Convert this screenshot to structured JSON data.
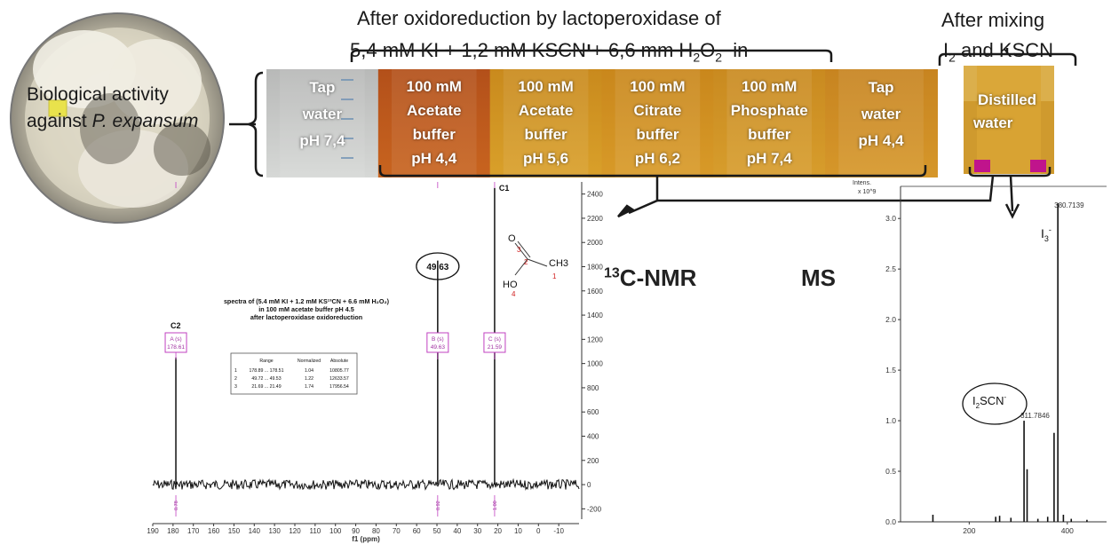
{
  "header": {
    "title_line1": "After oxidoreduction by lactoperoxidase of",
    "title_line2_part1": "5,4 mM KI + 1,2 mM KSCN + 6,6 mm H",
    "title_line2_sub1": "2",
    "title_line2_part2": "O",
    "title_line2_sub2": "2",
    "title_line2_part3": "  in",
    "mixing_line1": "After mixing",
    "mixing_line2_part1": "I",
    "mixing_line2_sub": "2",
    "mixing_line2_part2": " and KSCN"
  },
  "biological": {
    "line1": "Biological activity",
    "line2_plain": "against ",
    "line2_italic": "P. expansum"
  },
  "tubes": [
    {
      "label": [
        "Tap",
        "water",
        "pH 7,4"
      ],
      "color_top": "#b8b9b8",
      "color_bottom": "#d6d8d6"
    },
    {
      "label": [
        "100 mM",
        "Acetate",
        "buffer",
        "pH 4,4"
      ],
      "color_top": "#b3501a",
      "color_bottom": "#c8641f"
    },
    {
      "label": [
        "100 mM",
        "Acetate",
        "buffer",
        "pH 5,6"
      ],
      "color_top": "#c98a1d",
      "color_bottom": "#d9a02a"
    },
    {
      "label": [
        "100 mM",
        "Citrate",
        "buffer",
        "pH 6,2"
      ],
      "color_top": "#c9871c",
      "color_bottom": "#d89a28"
    },
    {
      "label": [
        "100 mM",
        "Phosphate",
        "buffer",
        "pH 7,4"
      ],
      "color_top": "#c98a20",
      "color_bottom": "#d79d2c"
    },
    {
      "label": [
        "Tap",
        "water",
        "pH 4,4"
      ],
      "color_top": "#c78420",
      "color_bottom": "#d6972a"
    }
  ],
  "distilled": {
    "label": [
      "Distilled",
      "water"
    ]
  },
  "nmr_label": {
    "sup": "13",
    "text": "C-NMR"
  },
  "ms_label": "MS",
  "chart_data": [
    {
      "type": "line",
      "title": "spectra of (5.4 mM KI + 1.2 mM KS13CN + 6.6 mM H2O2)",
      "title_lines": [
        "spectra of (5.4 mM KI + 1.2 mM KS¹³CN + 6.6 mM H₂O₂)",
        "in 100 mM acetate buffer pH 4.5",
        "after lactoperoxidase oxidoreduction"
      ],
      "xlabel": "f1 (ppm)",
      "xlim": [
        190,
        -20
      ],
      "ylim": [
        -300,
        2500
      ],
      "x_ticks": [
        "190",
        "180",
        "170",
        "160",
        "150",
        "140",
        "130",
        "120",
        "110",
        "100",
        "90",
        "80",
        "70",
        "60",
        "50",
        "40",
        "30",
        "20",
        "10",
        "0",
        "-10"
      ],
      "y_ticks": [
        "-200",
        "0",
        "200",
        "400",
        "600",
        "800",
        "1000",
        "1200",
        "1400",
        "1600",
        "1800",
        "2000",
        "2200",
        "2400"
      ],
      "peaks": [
        {
          "label": "C2",
          "ppm": 178.61,
          "height": 1050,
          "box_top": "A (s)",
          "box_bottom": "178.61",
          "integral": "0.78"
        },
        {
          "label": "49.63",
          "ppm": 49.63,
          "height": 1850,
          "box_top": "B (s)",
          "box_bottom": "49.63",
          "integral": "0.92"
        },
        {
          "label": "C1",
          "ppm": 21.59,
          "height": 2450,
          "box_top": "C (s)",
          "box_bottom": "21.59",
          "integral": "1.00"
        }
      ],
      "integral_table": {
        "headers": [
          "",
          "Range",
          "Normalized",
          "Absolute"
        ],
        "rows": [
          [
            "1",
            "178.89 ... 178.51",
            "1.04",
            "10805.77"
          ],
          [
            "2",
            "49.72 ... 49.53",
            "1.22",
            "12633.57"
          ],
          [
            "3",
            "21.69 ... 21.49",
            "1.74",
            "17956.54"
          ]
        ]
      },
      "molecule": {
        "atoms": [
          "O",
          "HO",
          "CH3"
        ],
        "numbers": [
          "3",
          "2",
          "1",
          "4"
        ]
      }
    },
    {
      "type": "bar",
      "ylabel_line1": "Intens.",
      "ylabel_line2": "x 10^9",
      "ylim": [
        0,
        3.3
      ],
      "xlim": [
        60,
        480
      ],
      "y_ticks": [
        "0.0",
        "0.5",
        "1.0",
        "1.5",
        "2.0",
        "2.5",
        "3.0"
      ],
      "x_ticks": [
        "200",
        "400"
      ],
      "peaks": [
        {
          "mz": 126,
          "intensity": 0.07
        },
        {
          "mz": 254,
          "intensity": 0.05
        },
        {
          "mz": 262,
          "intensity": 0.06
        },
        {
          "mz": 285,
          "intensity": 0.04
        },
        {
          "mz": 311.7846,
          "intensity": 1.0,
          "label": "311.7846"
        },
        {
          "mz": 318,
          "intensity": 0.52
        },
        {
          "mz": 340,
          "intensity": 0.03
        },
        {
          "mz": 360,
          "intensity": 0.05
        },
        {
          "mz": 373,
          "intensity": 0.88
        },
        {
          "mz": 380.7139,
          "intensity": 3.15,
          "label": "380.7139"
        },
        {
          "mz": 392,
          "intensity": 0.07
        },
        {
          "mz": 408,
          "intensity": 0.03
        },
        {
          "mz": 440,
          "intensity": 0.02
        }
      ],
      "annotations": {
        "i3": "I",
        "i3_sub": "3",
        "i3_sup": "-",
        "i2scn_base": "I",
        "i2scn_sub": "2",
        "i2scn_rest": "SCN",
        "i2scn_sup": "-"
      }
    }
  ]
}
